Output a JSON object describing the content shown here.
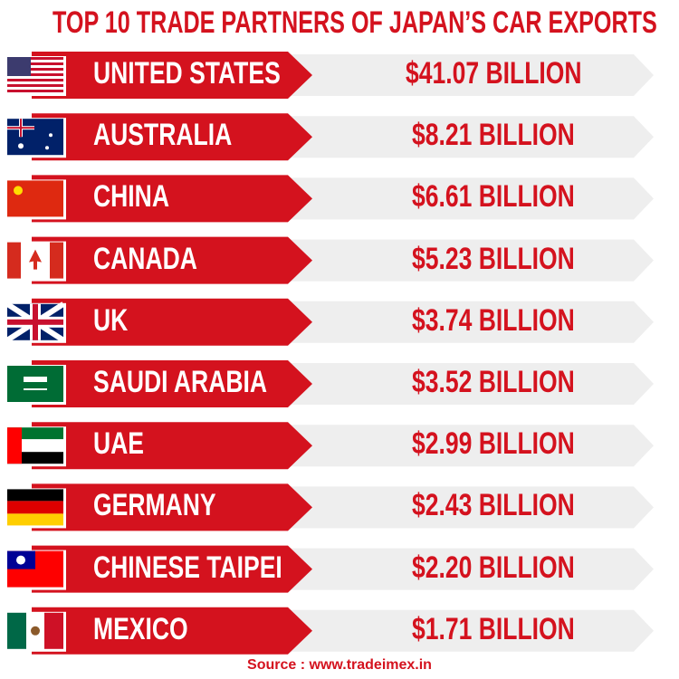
{
  "title": "TOP 10 TRADE PARTNERS OF JAPAN’S CAR EXPORTS",
  "rows": [
    {
      "country": "UNITED STATES",
      "value": "$41.07 BILLION"
    },
    {
      "country": "AUSTRALIA",
      "value": "$8.21 BILLION"
    },
    {
      "country": "CHINA",
      "value": "$6.61 BILLION"
    },
    {
      "country": "CANADA",
      "value": "$5.23 BILLION"
    },
    {
      "country": "UK",
      "value": "$3.74 BILLION"
    },
    {
      "country": "SAUDI ARABIA",
      "value": "$3.52 BILLION"
    },
    {
      "country": "UAE",
      "value": "$2.99 BILLION"
    },
    {
      "country": "GERMANY",
      "value": "$2.43 BILLION"
    },
    {
      "country": "CHINESE TAIPEI",
      "value": "$2.20 BILLION"
    },
    {
      "country": "MEXICO",
      "value": "$1.71 BILLION"
    }
  ],
  "source": "Source : www.tradeimex.in"
}
